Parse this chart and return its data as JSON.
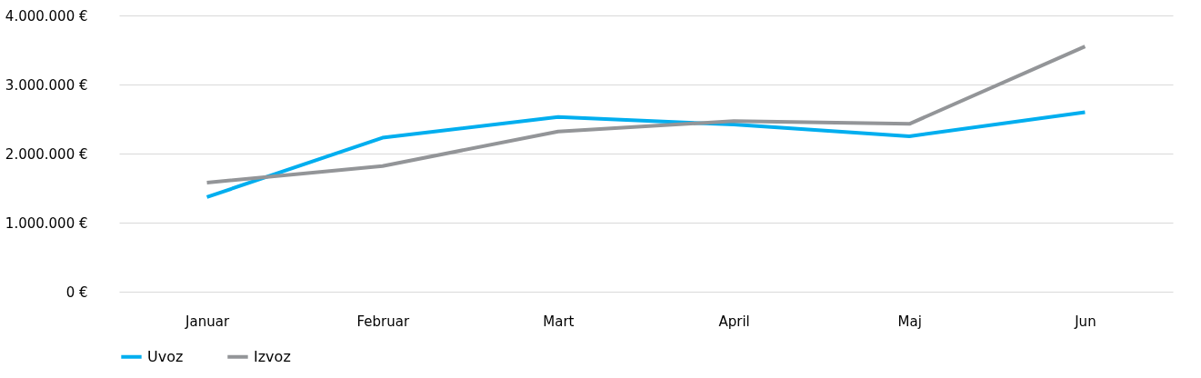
{
  "chart_data": {
    "type": "line",
    "categories": [
      "Januar",
      "Februar",
      "Mart",
      "April",
      "Maj",
      "Jun"
    ],
    "series": [
      {
        "name": "Uvoz",
        "color": "#00aeef",
        "values": [
          1370000,
          2230000,
          2530000,
          2420000,
          2250000,
          2600000
        ]
      },
      {
        "name": "Izvoz",
        "color": "#939598",
        "values": [
          1580000,
          1820000,
          2320000,
          2470000,
          2430000,
          3550000
        ]
      }
    ],
    "ylim": [
      0,
      4000000
    ],
    "yticks": [
      {
        "value": 0,
        "label": "0 €"
      },
      {
        "value": 1000000,
        "label": "1.000.000 €"
      },
      {
        "value": 2000000,
        "label": "2.000.000 €"
      },
      {
        "value": 3000000,
        "label": "3.000.000 €"
      },
      {
        "value": 4000000,
        "label": "4.000.000 €"
      }
    ],
    "grid": "y",
    "legend": "bottom",
    "marker": "none",
    "line_style": "solid"
  }
}
